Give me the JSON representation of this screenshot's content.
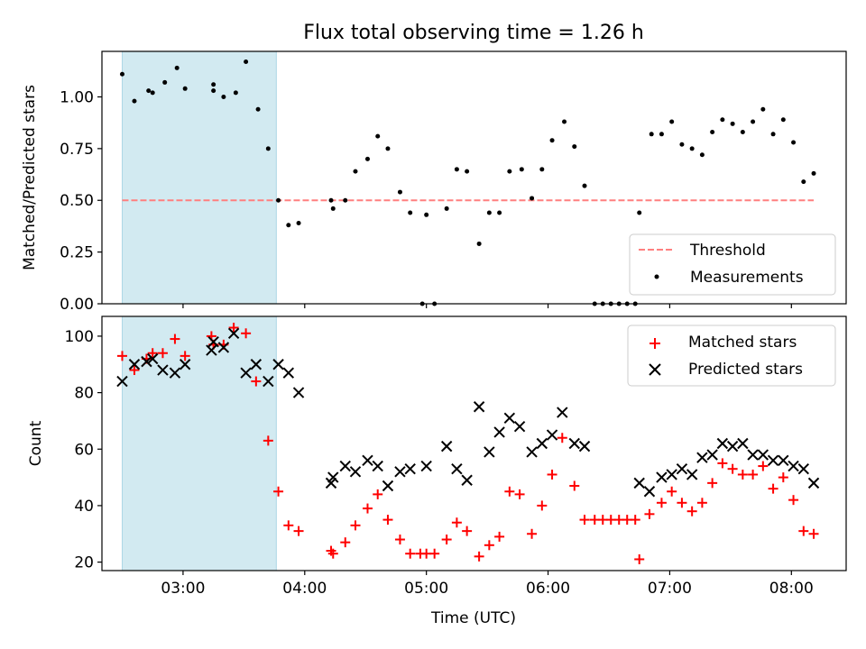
{
  "figure": {
    "title": "Flux total observing time = 1.26 h",
    "xlabel": "Time (UTC)",
    "x_ticks": [
      "03:00",
      "04:00",
      "05:00",
      "06:00",
      "07:00",
      "08:00"
    ],
    "x_range": [
      "02:20",
      "08:27"
    ],
    "shaded_span": [
      "02:30",
      "03:46"
    ],
    "colors": {
      "shade": "#add8e6",
      "threshold": "#ff7f7f",
      "measurements": "#000000",
      "matched": "#ff0000",
      "predicted": "#000000"
    }
  },
  "chart_data": [
    {
      "type": "scatter",
      "ylabel": "Matched/Predicted stars",
      "ylim": [
        0.0,
        1.22
      ],
      "y_ticks": [
        "0.00",
        "0.25",
        "0.50",
        "0.75",
        "1.00"
      ],
      "legend_position": "lower-right",
      "threshold": {
        "name": "Threshold",
        "value": 0.5,
        "x": [
          "02:30",
          "08:11"
        ]
      },
      "series": [
        {
          "name": "Measurements",
          "points": [
            [
              "02:30",
              1.11
            ],
            [
              "02:36",
              0.98
            ],
            [
              "02:43",
              1.03
            ],
            [
              "02:45",
              1.02
            ],
            [
              "02:51",
              1.07
            ],
            [
              "02:57",
              1.14
            ],
            [
              "03:01",
              1.04
            ],
            [
              "03:15",
              1.06
            ],
            [
              "03:15",
              1.03
            ],
            [
              "03:20",
              1.0
            ],
            [
              "03:26",
              1.02
            ],
            [
              "03:31",
              1.17
            ],
            [
              "03:37",
              0.94
            ],
            [
              "03:42",
              0.75
            ],
            [
              "03:47",
              0.5
            ],
            [
              "03:52",
              0.38
            ],
            [
              "03:57",
              0.39
            ],
            [
              "04:13",
              0.5
            ],
            [
              "04:14",
              0.46
            ],
            [
              "04:20",
              0.5
            ],
            [
              "04:25",
              0.64
            ],
            [
              "04:31",
              0.7
            ],
            [
              "04:36",
              0.81
            ],
            [
              "04:41",
              0.75
            ],
            [
              "04:47",
              0.54
            ],
            [
              "04:52",
              0.44
            ],
            [
              "04:58",
              0.0
            ],
            [
              "05:00",
              0.43
            ],
            [
              "05:04",
              0.0
            ],
            [
              "05:10",
              0.46
            ],
            [
              "05:15",
              0.65
            ],
            [
              "05:20",
              0.64
            ],
            [
              "05:26",
              0.29
            ],
            [
              "05:31",
              0.44
            ],
            [
              "05:36",
              0.44
            ],
            [
              "05:41",
              0.64
            ],
            [
              "05:47",
              0.65
            ],
            [
              "05:52",
              0.51
            ],
            [
              "05:57",
              0.65
            ],
            [
              "06:02",
              0.79
            ],
            [
              "06:08",
              0.88
            ],
            [
              "06:13",
              0.76
            ],
            [
              "06:18",
              0.57
            ],
            [
              "06:23",
              0.0
            ],
            [
              "06:27",
              0.0
            ],
            [
              "06:31",
              0.0
            ],
            [
              "06:35",
              0.0
            ],
            [
              "06:39",
              0.0
            ],
            [
              "06:43",
              0.0
            ],
            [
              "06:45",
              0.44
            ],
            [
              "06:51",
              0.82
            ],
            [
              "06:56",
              0.82
            ],
            [
              "07:01",
              0.88
            ],
            [
              "07:06",
              0.77
            ],
            [
              "07:11",
              0.75
            ],
            [
              "07:16",
              0.72
            ],
            [
              "07:21",
              0.83
            ],
            [
              "07:26",
              0.89
            ],
            [
              "07:31",
              0.87
            ],
            [
              "07:36",
              0.83
            ],
            [
              "07:41",
              0.88
            ],
            [
              "07:46",
              0.94
            ],
            [
              "07:51",
              0.82
            ],
            [
              "07:56",
              0.89
            ],
            [
              "08:01",
              0.78
            ],
            [
              "08:06",
              0.59
            ],
            [
              "08:11",
              0.63
            ]
          ]
        }
      ]
    },
    {
      "type": "scatter",
      "ylabel": "Count",
      "ylim": [
        17,
        107
      ],
      "y_ticks": [
        "20",
        "40",
        "60",
        "80",
        "100"
      ],
      "legend_position": "upper-right",
      "series": [
        {
          "name": "Matched stars",
          "marker": "plus",
          "points": [
            [
              "02:30",
              93
            ],
            [
              "02:36",
              88
            ],
            [
              "02:42",
              92
            ],
            [
              "02:45",
              94
            ],
            [
              "02:50",
              94
            ],
            [
              "02:56",
              99
            ],
            [
              "03:01",
              93
            ],
            [
              "03:14",
              100
            ],
            [
              "03:15",
              97
            ],
            [
              "03:20",
              97
            ],
            [
              "03:25",
              103
            ],
            [
              "03:31",
              101
            ],
            [
              "03:36",
              84
            ],
            [
              "03:42",
              63
            ],
            [
              "03:47",
              45
            ],
            [
              "03:52",
              33
            ],
            [
              "03:57",
              31
            ],
            [
              "04:13",
              24
            ],
            [
              "04:14",
              23
            ],
            [
              "04:20",
              27
            ],
            [
              "04:25",
              33
            ],
            [
              "04:31",
              39
            ],
            [
              "04:36",
              44
            ],
            [
              "04:41",
              35
            ],
            [
              "04:47",
              28
            ],
            [
              "04:52",
              23
            ],
            [
              "04:57",
              23
            ],
            [
              "05:00",
              23
            ],
            [
              "05:04",
              23
            ],
            [
              "05:10",
              28
            ],
            [
              "05:15",
              34
            ],
            [
              "05:20",
              31
            ],
            [
              "05:26",
              22
            ],
            [
              "05:31",
              26
            ],
            [
              "05:36",
              29
            ],
            [
              "05:41",
              45
            ],
            [
              "05:46",
              44
            ],
            [
              "05:52",
              30
            ],
            [
              "05:57",
              40
            ],
            [
              "06:02",
              51
            ],
            [
              "06:07",
              64
            ],
            [
              "06:13",
              47
            ],
            [
              "06:18",
              35
            ],
            [
              "06:23",
              35
            ],
            [
              "06:27",
              35
            ],
            [
              "06:31",
              35
            ],
            [
              "06:35",
              35
            ],
            [
              "06:39",
              35
            ],
            [
              "06:43",
              35
            ],
            [
              "06:45",
              21
            ],
            [
              "06:50",
              37
            ],
            [
              "06:56",
              41
            ],
            [
              "07:01",
              45
            ],
            [
              "07:06",
              41
            ],
            [
              "07:11",
              38
            ],
            [
              "07:16",
              41
            ],
            [
              "07:21",
              48
            ],
            [
              "07:26",
              55
            ],
            [
              "07:31",
              53
            ],
            [
              "07:36",
              51
            ],
            [
              "07:41",
              51
            ],
            [
              "07:46",
              54
            ],
            [
              "07:51",
              46
            ],
            [
              "07:56",
              50
            ],
            [
              "08:01",
              42
            ],
            [
              "08:06",
              31
            ],
            [
              "08:11",
              30
            ]
          ]
        },
        {
          "name": "Predicted stars",
          "marker": "x",
          "points": [
            [
              "02:30",
              84
            ],
            [
              "02:36",
              90
            ],
            [
              "02:42",
              91
            ],
            [
              "02:45",
              92
            ],
            [
              "02:50",
              88
            ],
            [
              "02:56",
              87
            ],
            [
              "03:01",
              90
            ],
            [
              "03:14",
              95
            ],
            [
              "03:15",
              98
            ],
            [
              "03:20",
              96
            ],
            [
              "03:25",
              101
            ],
            [
              "03:31",
              87
            ],
            [
              "03:36",
              90
            ],
            [
              "03:42",
              84
            ],
            [
              "03:47",
              90
            ],
            [
              "03:52",
              87
            ],
            [
              "03:57",
              80
            ],
            [
              "04:13",
              48
            ],
            [
              "04:14",
              50
            ],
            [
              "04:20",
              54
            ],
            [
              "04:25",
              52
            ],
            [
              "04:31",
              56
            ],
            [
              "04:36",
              54
            ],
            [
              "04:41",
              47
            ],
            [
              "04:47",
              52
            ],
            [
              "04:52",
              53
            ],
            [
              "05:00",
              54
            ],
            [
              "05:10",
              61
            ],
            [
              "05:15",
              53
            ],
            [
              "05:20",
              49
            ],
            [
              "05:26",
              75
            ],
            [
              "05:31",
              59
            ],
            [
              "05:36",
              66
            ],
            [
              "05:41",
              71
            ],
            [
              "05:46",
              68
            ],
            [
              "05:52",
              59
            ],
            [
              "05:57",
              62
            ],
            [
              "06:02",
              65
            ],
            [
              "06:07",
              73
            ],
            [
              "06:13",
              62
            ],
            [
              "06:18",
              61
            ],
            [
              "06:45",
              48
            ],
            [
              "06:50",
              45
            ],
            [
              "06:56",
              50
            ],
            [
              "07:01",
              51
            ],
            [
              "07:06",
              53
            ],
            [
              "07:11",
              51
            ],
            [
              "07:16",
              57
            ],
            [
              "07:21",
              58
            ],
            [
              "07:26",
              62
            ],
            [
              "07:31",
              61
            ],
            [
              "07:36",
              62
            ],
            [
              "07:41",
              58
            ],
            [
              "07:46",
              58
            ],
            [
              "07:51",
              56
            ],
            [
              "07:56",
              56
            ],
            [
              "08:01",
              54
            ],
            [
              "08:06",
              53
            ],
            [
              "08:11",
              48
            ]
          ]
        }
      ]
    }
  ]
}
